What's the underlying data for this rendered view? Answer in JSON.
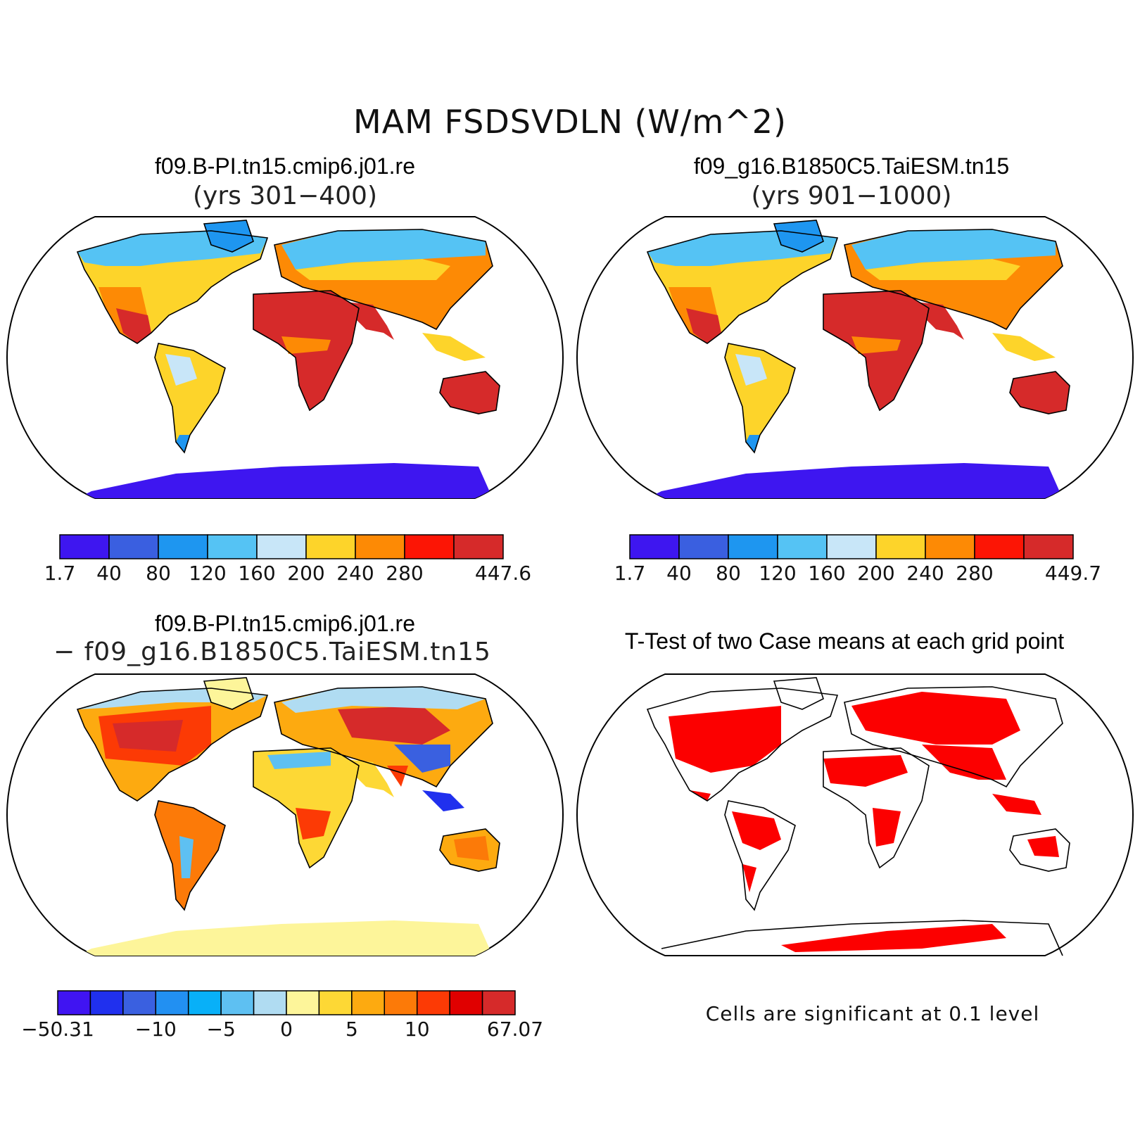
{
  "title": "MAM FSDSVDLN (W/m^2)",
  "panels": {
    "case1": {
      "name": "f09.B-PI.tn15.cmip6.j01.re",
      "years": "(yrs 301−400)"
    },
    "case2": {
      "name": "f09_g16.B1850C5.TaiESM.tn15",
      "years": "(yrs 901−1000)"
    },
    "diff": {
      "line1": "f09.B-PI.tn15.cmip6.j01.re",
      "line2": "− f09_g16.B1850C5.TaiESM.tn15"
    },
    "ttest": {
      "title": "T-Test of two Case means at each grid point",
      "note": "Cells are significant at 0.1 level"
    }
  },
  "colorbars": {
    "case1": {
      "colors": [
        "#3e16f0",
        "#3a5fe0",
        "#1e96f0",
        "#55c3f4",
        "#c8e6f8",
        "#fdd42a",
        "#fd8a05",
        "#fc1505",
        "#d62a2a"
      ],
      "labels": [
        "1.7",
        "40",
        "80",
        "120",
        "160",
        "200",
        "240",
        "280",
        "447.6"
      ]
    },
    "case2": {
      "colors": [
        "#3e16f0",
        "#3a5fe0",
        "#1e96f0",
        "#55c3f4",
        "#c8e6f8",
        "#fdd42a",
        "#fd8a05",
        "#fc1505",
        "#d62a2a"
      ],
      "labels": [
        "1.7",
        "40",
        "80",
        "120",
        "160",
        "200",
        "240",
        "280",
        "449.7"
      ]
    },
    "diff": {
      "colors": [
        "#4014f2",
        "#2030ee",
        "#3a60e0",
        "#2290f2",
        "#08b0f8",
        "#5ec0f2",
        "#b0dcf2",
        "#fdf59a",
        "#fdd835",
        "#fdaa10",
        "#fc7a08",
        "#fc3a05",
        "#e00000",
        "#d62a2a"
      ],
      "labels": [
        "−50.31",
        "−10",
        "−5",
        "0",
        "5",
        "10",
        "67.07"
      ]
    }
  },
  "map_colors": {
    "ocean": "#ffffff",
    "outline": "#000000",
    "antarctica_mean": "#3e16f0",
    "antarctica_diff": "#fdf59a",
    "significant": "#fc0000"
  }
}
